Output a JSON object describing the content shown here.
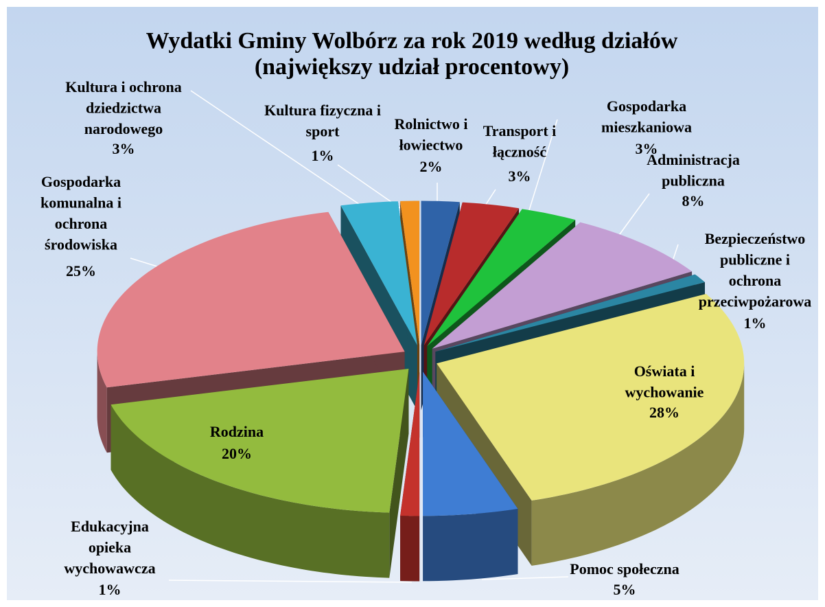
{
  "chart_data": {
    "type": "pie3d",
    "title": "Wydatki Gminy Wolbórz za rok 2019 według działów",
    "subtitle": "(największy udział procentowy)",
    "categories": [
      "Rolnictwo i\nłowiectwo",
      "Transport i\nłączność",
      "Gospodarka\nmieszkaniowa",
      "Administracja\npubliczna",
      "Bezpieczeństwo\npubliczne i\nochrona\nprzeciwpożarowa",
      "Oświata i\nwychowanie",
      "Pomoc społeczna",
      "Edukacyjna\nopieka\nwychowawcza",
      "Rodzina",
      "Gospodarka\nkomunalna i\nochrona\nśrodowiska",
      "Kultura i ochrona\ndziedzictwa\nnarodowego",
      "Kultura fizyczna i\nsport"
    ],
    "values": [
      2,
      3,
      3,
      8,
      1,
      28,
      5,
      1,
      20,
      25,
      3,
      1
    ],
    "value_labels": [
      "2%",
      "3%",
      "3%",
      "8%",
      "1%",
      "28%",
      "5%",
      "1%",
      "20%",
      "25%",
      "3%",
      "1%"
    ],
    "colors": [
      "#2f63a8",
      "#b82c2c",
      "#1fc23c",
      "#c39ed3",
      "#2b86a3",
      "#e9e47c",
      "#3f7dd3",
      "#c4322c",
      "#93bb3e",
      "#e2828a",
      "#3ab3d3",
      "#f2921f"
    ]
  }
}
